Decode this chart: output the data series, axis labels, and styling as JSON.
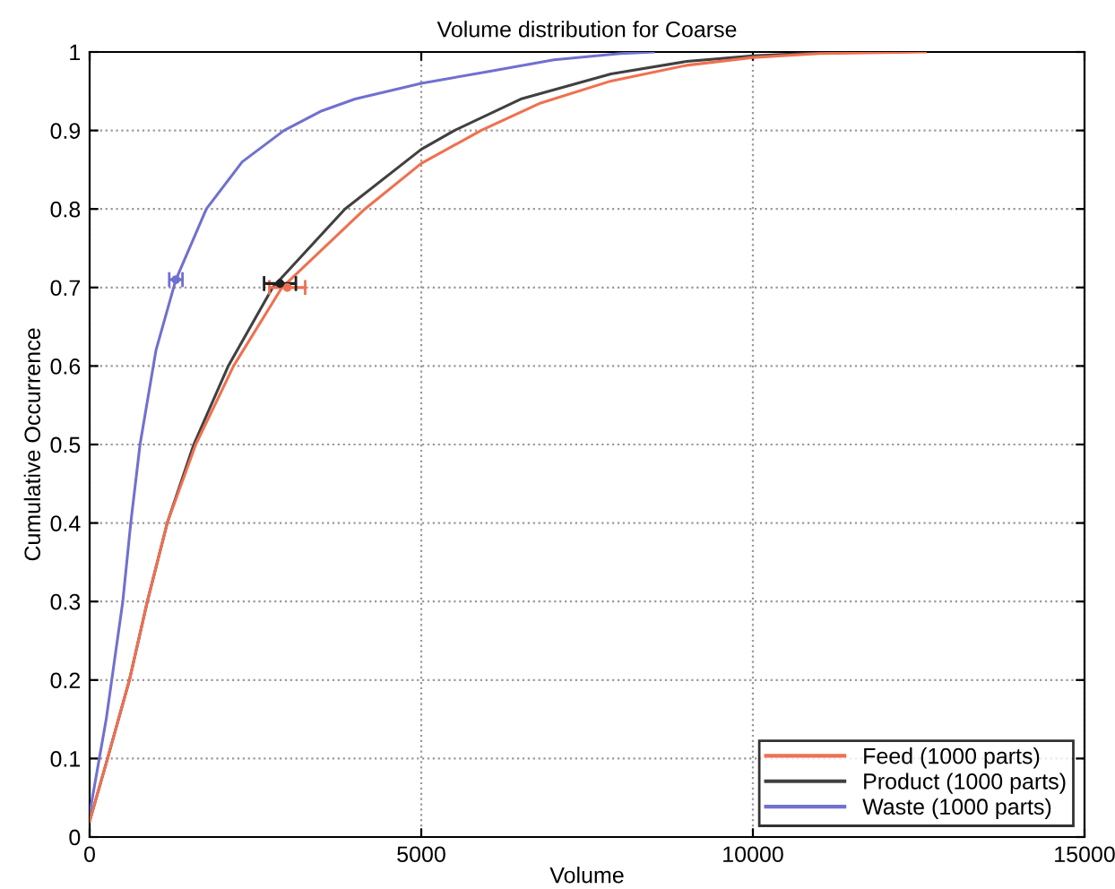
{
  "chart_data": {
    "type": "line",
    "title": "Volume distribution for Coarse",
    "xlabel": "Volume",
    "ylabel": "Cumulative Occurrence",
    "xlim": [
      0,
      15000
    ],
    "xticks": [
      0,
      5000,
      10000,
      15000
    ],
    "ylim": [
      0,
      1
    ],
    "yticks": [
      0,
      0.1,
      0.2,
      0.3,
      0.4,
      0.5,
      0.6,
      0.7,
      0.8,
      0.9,
      1
    ],
    "grid": true,
    "legend": "bottom right",
    "line_style": "solid",
    "series": [
      {
        "name": "Feed (1000 parts)",
        "color": "#f07050",
        "x": [
          0,
          270,
          600,
          870,
          1170,
          1600,
          2170,
          2900,
          4150,
          5000,
          5900,
          6800,
          7860,
          9000,
          10000,
          11000,
          12600
        ],
        "values": [
          0.02,
          0.1,
          0.2,
          0.3,
          0.4,
          0.5,
          0.6,
          0.7,
          0.8,
          0.858,
          0.9,
          0.935,
          0.963,
          0.983,
          0.993,
          0.998,
          1.0
        ]
      },
      {
        "name": "Product (1000 parts)",
        "color": "#404040",
        "x": [
          0,
          270,
          600,
          870,
          1170,
          1570,
          2090,
          2760,
          3850,
          5000,
          5500,
          6500,
          7860,
          9000,
          10000,
          11000,
          12000
        ],
        "values": [
          0.02,
          0.1,
          0.2,
          0.3,
          0.4,
          0.5,
          0.6,
          0.7,
          0.8,
          0.876,
          0.9,
          0.94,
          0.972,
          0.988,
          0.995,
          0.999,
          1.0
        ]
      },
      {
        "name": "Waste (1000 parts)",
        "color": "#7070d0",
        "x": [
          0,
          250,
          500,
          620,
          760,
          1000,
          1300,
          1760,
          2300,
          2930,
          3500,
          4000,
          5000,
          6000,
          7000,
          8000,
          8500
        ],
        "values": [
          0.03,
          0.15,
          0.3,
          0.4,
          0.5,
          0.62,
          0.71,
          0.8,
          0.86,
          0.9,
          0.925,
          0.94,
          0.96,
          0.975,
          0.99,
          0.998,
          1.0
        ]
      },
      {
        "type": "scatter",
        "marker": "circle",
        "color": "#f07050",
        "x": [
          2980
        ],
        "values": [
          0.7
        ],
        "xerrors": [
          270
        ]
      },
      {
        "type": "scatter",
        "marker": "circle",
        "color": "#202020",
        "x": [
          2870
        ],
        "values": [
          0.705
        ],
        "xerrors": [
          240
        ]
      },
      {
        "type": "scatter",
        "marker": "circle",
        "color": "#7070d0",
        "x": [
          1300
        ],
        "values": [
          0.71
        ],
        "xerrors": [
          100
        ]
      }
    ]
  }
}
